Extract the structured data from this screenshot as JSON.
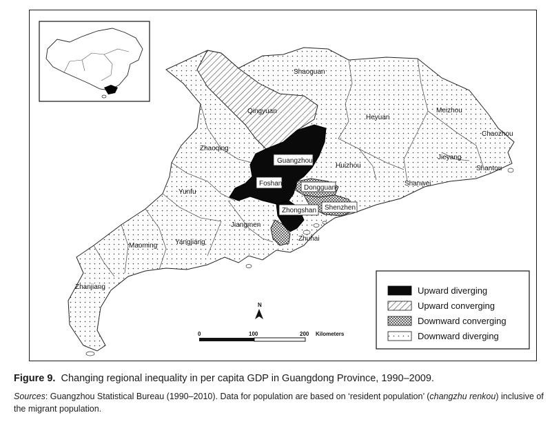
{
  "map": {
    "cities": {
      "shaoguan": "Shaoguan",
      "qingyuan": "Qingyuan",
      "heyuan": "Heyuan",
      "meizhou": "Meizhou",
      "chaozhou": "Chaozhou",
      "zhaoqing": "Zhaoqing",
      "guangzhou": "Guangzhou",
      "huizhou": "Huizhou",
      "jieyang": "Jieyang",
      "shantou": "Shantou",
      "foshan": "Foshan",
      "dongguan": "Dongguan",
      "shanwei": "Shanwei",
      "yunfu": "Yunfu",
      "zhongshan": "Zhongshan",
      "shenzhen": "Shenzhen",
      "jiangmen": "Jiangmen",
      "zhuhai": "Zhuhai",
      "maoming": "Maoming",
      "yangjiang": "Yangjiang",
      "zhanjiang": "Zhanjiang"
    },
    "legend": {
      "upward_diverging": "Upward diverging",
      "upward_converging": "Upward converging",
      "downward_converging": "Downward converging",
      "downward_diverging": "Downward diverging"
    },
    "north_label": "N",
    "scale": {
      "tick_0": "0",
      "tick_100": "100",
      "tick_200": "200",
      "unit": "Kilometers"
    }
  },
  "caption": {
    "figure_label": "Figure 9.",
    "title": "Changing regional inequality in per capita GDP in Guangdong Province, 1990–2009.",
    "sources_label": "Sources",
    "sources_text": ": Guangzhou Statistical Bureau (1990–2010). Data for population are based on ‘resident population’ (",
    "term_part1": "changzhu",
    "term_part2": "renkou",
    "sources_tail": ") inclusive of the migrant population."
  }
}
